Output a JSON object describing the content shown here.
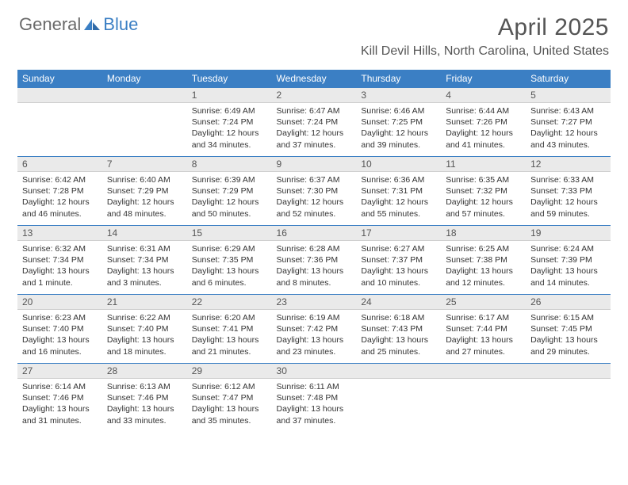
{
  "brand": {
    "part1": "General",
    "part2": "Blue"
  },
  "title": "April 2025",
  "location": "Kill Devil Hills, North Carolina, United States",
  "colors": {
    "header_bg": "#3b7fc4",
    "header_text": "#ffffff",
    "daynum_bg": "#eaeaea",
    "border_accent": "#3b7fc4",
    "body_text": "#333333",
    "title_text": "#555555"
  },
  "dayNames": [
    "Sunday",
    "Monday",
    "Tuesday",
    "Wednesday",
    "Thursday",
    "Friday",
    "Saturday"
  ],
  "weeks": [
    [
      null,
      null,
      {
        "n": "1",
        "sr": "Sunrise: 6:49 AM",
        "ss": "Sunset: 7:24 PM",
        "dl": "Daylight: 12 hours and 34 minutes."
      },
      {
        "n": "2",
        "sr": "Sunrise: 6:47 AM",
        "ss": "Sunset: 7:24 PM",
        "dl": "Daylight: 12 hours and 37 minutes."
      },
      {
        "n": "3",
        "sr": "Sunrise: 6:46 AM",
        "ss": "Sunset: 7:25 PM",
        "dl": "Daylight: 12 hours and 39 minutes."
      },
      {
        "n": "4",
        "sr": "Sunrise: 6:44 AM",
        "ss": "Sunset: 7:26 PM",
        "dl": "Daylight: 12 hours and 41 minutes."
      },
      {
        "n": "5",
        "sr": "Sunrise: 6:43 AM",
        "ss": "Sunset: 7:27 PM",
        "dl": "Daylight: 12 hours and 43 minutes."
      }
    ],
    [
      {
        "n": "6",
        "sr": "Sunrise: 6:42 AM",
        "ss": "Sunset: 7:28 PM",
        "dl": "Daylight: 12 hours and 46 minutes."
      },
      {
        "n": "7",
        "sr": "Sunrise: 6:40 AM",
        "ss": "Sunset: 7:29 PM",
        "dl": "Daylight: 12 hours and 48 minutes."
      },
      {
        "n": "8",
        "sr": "Sunrise: 6:39 AM",
        "ss": "Sunset: 7:29 PM",
        "dl": "Daylight: 12 hours and 50 minutes."
      },
      {
        "n": "9",
        "sr": "Sunrise: 6:37 AM",
        "ss": "Sunset: 7:30 PM",
        "dl": "Daylight: 12 hours and 52 minutes."
      },
      {
        "n": "10",
        "sr": "Sunrise: 6:36 AM",
        "ss": "Sunset: 7:31 PM",
        "dl": "Daylight: 12 hours and 55 minutes."
      },
      {
        "n": "11",
        "sr": "Sunrise: 6:35 AM",
        "ss": "Sunset: 7:32 PM",
        "dl": "Daylight: 12 hours and 57 minutes."
      },
      {
        "n": "12",
        "sr": "Sunrise: 6:33 AM",
        "ss": "Sunset: 7:33 PM",
        "dl": "Daylight: 12 hours and 59 minutes."
      }
    ],
    [
      {
        "n": "13",
        "sr": "Sunrise: 6:32 AM",
        "ss": "Sunset: 7:34 PM",
        "dl": "Daylight: 13 hours and 1 minute."
      },
      {
        "n": "14",
        "sr": "Sunrise: 6:31 AM",
        "ss": "Sunset: 7:34 PM",
        "dl": "Daylight: 13 hours and 3 minutes."
      },
      {
        "n": "15",
        "sr": "Sunrise: 6:29 AM",
        "ss": "Sunset: 7:35 PM",
        "dl": "Daylight: 13 hours and 6 minutes."
      },
      {
        "n": "16",
        "sr": "Sunrise: 6:28 AM",
        "ss": "Sunset: 7:36 PM",
        "dl": "Daylight: 13 hours and 8 minutes."
      },
      {
        "n": "17",
        "sr": "Sunrise: 6:27 AM",
        "ss": "Sunset: 7:37 PM",
        "dl": "Daylight: 13 hours and 10 minutes."
      },
      {
        "n": "18",
        "sr": "Sunrise: 6:25 AM",
        "ss": "Sunset: 7:38 PM",
        "dl": "Daylight: 13 hours and 12 minutes."
      },
      {
        "n": "19",
        "sr": "Sunrise: 6:24 AM",
        "ss": "Sunset: 7:39 PM",
        "dl": "Daylight: 13 hours and 14 minutes."
      }
    ],
    [
      {
        "n": "20",
        "sr": "Sunrise: 6:23 AM",
        "ss": "Sunset: 7:40 PM",
        "dl": "Daylight: 13 hours and 16 minutes."
      },
      {
        "n": "21",
        "sr": "Sunrise: 6:22 AM",
        "ss": "Sunset: 7:40 PM",
        "dl": "Daylight: 13 hours and 18 minutes."
      },
      {
        "n": "22",
        "sr": "Sunrise: 6:20 AM",
        "ss": "Sunset: 7:41 PM",
        "dl": "Daylight: 13 hours and 21 minutes."
      },
      {
        "n": "23",
        "sr": "Sunrise: 6:19 AM",
        "ss": "Sunset: 7:42 PM",
        "dl": "Daylight: 13 hours and 23 minutes."
      },
      {
        "n": "24",
        "sr": "Sunrise: 6:18 AM",
        "ss": "Sunset: 7:43 PM",
        "dl": "Daylight: 13 hours and 25 minutes."
      },
      {
        "n": "25",
        "sr": "Sunrise: 6:17 AM",
        "ss": "Sunset: 7:44 PM",
        "dl": "Daylight: 13 hours and 27 minutes."
      },
      {
        "n": "26",
        "sr": "Sunrise: 6:15 AM",
        "ss": "Sunset: 7:45 PM",
        "dl": "Daylight: 13 hours and 29 minutes."
      }
    ],
    [
      {
        "n": "27",
        "sr": "Sunrise: 6:14 AM",
        "ss": "Sunset: 7:46 PM",
        "dl": "Daylight: 13 hours and 31 minutes."
      },
      {
        "n": "28",
        "sr": "Sunrise: 6:13 AM",
        "ss": "Sunset: 7:46 PM",
        "dl": "Daylight: 13 hours and 33 minutes."
      },
      {
        "n": "29",
        "sr": "Sunrise: 6:12 AM",
        "ss": "Sunset: 7:47 PM",
        "dl": "Daylight: 13 hours and 35 minutes."
      },
      {
        "n": "30",
        "sr": "Sunrise: 6:11 AM",
        "ss": "Sunset: 7:48 PM",
        "dl": "Daylight: 13 hours and 37 minutes."
      },
      null,
      null,
      null
    ]
  ]
}
